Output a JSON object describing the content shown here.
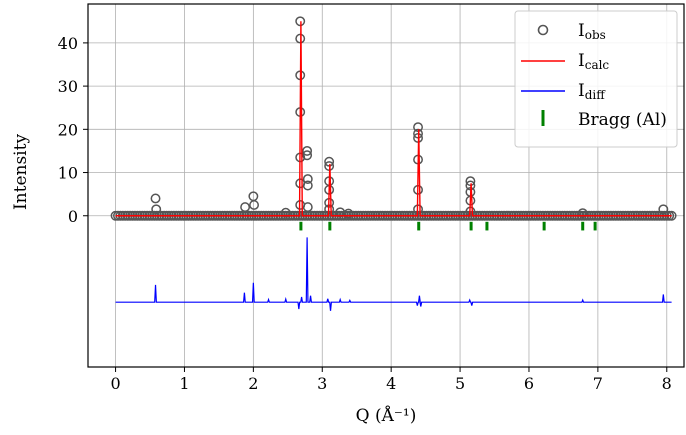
{
  "chart_data": {
    "type": "line",
    "xlabel": "Q (Å⁻¹)",
    "ylabel": "Intensity",
    "xlim": [
      -0.4,
      8.25
    ],
    "ylim": [
      -35,
      49
    ],
    "x_ticks": [
      "0",
      "1",
      "2",
      "3",
      "4",
      "5",
      "6",
      "7",
      "8"
    ],
    "y_ticks": [
      "0",
      "10",
      "20",
      "30",
      "40"
    ],
    "grid": true,
    "legend_position": "top-right",
    "legend": {
      "obs_label": "I",
      "obs_sub": "obs",
      "calc_label": "I",
      "calc_sub": "calc",
      "diff_label": "I",
      "diff_sub": "diff",
      "bragg_label": "Bragg (Al)"
    },
    "colors": {
      "obs": "#555555",
      "calc": "#ff0000",
      "diff": "#0000ff",
      "bragg": "#008000"
    },
    "bragg_peaks": [
      2.69,
      3.11,
      4.4,
      5.16,
      5.39,
      6.22,
      6.78,
      6.96
    ],
    "bragg_tick_y": [
      -3.4,
      -1.4
    ],
    "calc_peaks": [
      {
        "x": 2.69,
        "height": 45.0
      },
      {
        "x": 3.11,
        "height": 12.0
      },
      {
        "x": 4.4,
        "height": 20.0
      },
      {
        "x": 5.16,
        "height": 7.5
      }
    ],
    "obs_points": [
      {
        "x": 0.58,
        "y": 4.0
      },
      {
        "x": 0.59,
        "y": 1.5
      },
      {
        "x": 1.88,
        "y": 2.0
      },
      {
        "x": 2.0,
        "y": 4.5
      },
      {
        "x": 2.01,
        "y": 2.5
      },
      {
        "x": 2.47,
        "y": 0.7
      },
      {
        "x": 2.68,
        "y": 45.0
      },
      {
        "x": 2.68,
        "y": 41.0
      },
      {
        "x": 2.68,
        "y": 32.5
      },
      {
        "x": 2.68,
        "y": 24.0
      },
      {
        "x": 2.68,
        "y": 13.5
      },
      {
        "x": 2.68,
        "y": 7.5
      },
      {
        "x": 2.68,
        "y": 2.5
      },
      {
        "x": 2.78,
        "y": 15.0
      },
      {
        "x": 2.78,
        "y": 14.0
      },
      {
        "x": 2.79,
        "y": 8.5
      },
      {
        "x": 2.79,
        "y": 7.0
      },
      {
        "x": 2.79,
        "y": 2.0
      },
      {
        "x": 3.1,
        "y": 12.5
      },
      {
        "x": 3.1,
        "y": 11.5
      },
      {
        "x": 3.1,
        "y": 8.0
      },
      {
        "x": 3.1,
        "y": 6.0
      },
      {
        "x": 3.1,
        "y": 3.0
      },
      {
        "x": 3.1,
        "y": 1.5
      },
      {
        "x": 3.26,
        "y": 0.8
      },
      {
        "x": 3.38,
        "y": 0.5
      },
      {
        "x": 4.39,
        "y": 20.5
      },
      {
        "x": 4.39,
        "y": 19.0
      },
      {
        "x": 4.39,
        "y": 18.0
      },
      {
        "x": 4.39,
        "y": 13.0
      },
      {
        "x": 4.39,
        "y": 6.0
      },
      {
        "x": 4.39,
        "y": 1.5
      },
      {
        "x": 5.15,
        "y": 8.0
      },
      {
        "x": 5.15,
        "y": 7.0
      },
      {
        "x": 5.15,
        "y": 5.5
      },
      {
        "x": 5.15,
        "y": 3.5
      },
      {
        "x": 5.15,
        "y": 1.0
      },
      {
        "x": 6.78,
        "y": 0.6
      },
      {
        "x": 7.95,
        "y": 1.5
      }
    ],
    "obs_baseline": {
      "x_start": 0.0,
      "x_end": 8.07,
      "count": 230,
      "y": 0.0
    },
    "diff_offset": -20.0,
    "diff_spikes": [
      {
        "x": 0.58,
        "dy": 4.0
      },
      {
        "x": 1.87,
        "dy": 2.2
      },
      {
        "x": 2.0,
        "dy": 4.5
      },
      {
        "x": 2.22,
        "dy": 0.6
      },
      {
        "x": 2.47,
        "dy": 0.7
      },
      {
        "x": 2.66,
        "dy": -1.6
      },
      {
        "x": 2.7,
        "dy": 1.2
      },
      {
        "x": 2.78,
        "dy": 15.0
      },
      {
        "x": 2.83,
        "dy": 1.5
      },
      {
        "x": 3.08,
        "dy": 0.8
      },
      {
        "x": 3.12,
        "dy": -2.0
      },
      {
        "x": 3.26,
        "dy": 0.6
      },
      {
        "x": 3.4,
        "dy": 0.4
      },
      {
        "x": 4.38,
        "dy": -0.8
      },
      {
        "x": 4.41,
        "dy": 1.5
      },
      {
        "x": 4.43,
        "dy": -1.0
      },
      {
        "x": 5.14,
        "dy": 0.5
      },
      {
        "x": 5.17,
        "dy": -0.8
      },
      {
        "x": 6.78,
        "dy": 0.5
      },
      {
        "x": 7.95,
        "dy": 1.8
      }
    ]
  }
}
